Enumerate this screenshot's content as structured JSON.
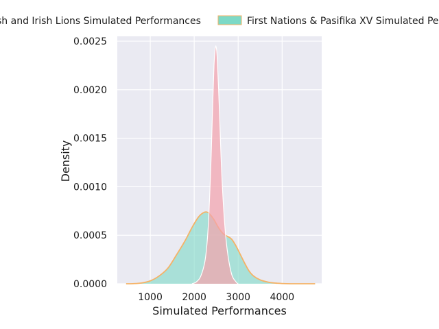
{
  "chart_data": {
    "type": "area",
    "xlabel": "Simulated Performances",
    "ylabel": "Density",
    "xlim": [
      250,
      4900
    ],
    "ylim": [
      0,
      0.00255
    ],
    "xticks": [
      1000,
      2000,
      3000,
      4000
    ],
    "xtick_labels": [
      "1000",
      "2000",
      "3000",
      "4000"
    ],
    "yticks": [
      0,
      0.0005,
      0.001,
      0.0015,
      0.002,
      0.0025
    ],
    "ytick_labels": [
      "0.0000",
      "0.0005",
      "0.0010",
      "0.0015",
      "0.0020",
      "0.0025"
    ],
    "grid": true,
    "legend_position": "top",
    "series": [
      {
        "name": "British and Irish Lions Simulated Performances",
        "legend_label": "sh and Irish Lions Simulated Performances",
        "fill_color": "#f4a3ad",
        "edge_color": "#ffffff",
        "x": [
          1950,
          2050,
          2150,
          2250,
          2320,
          2380,
          2420,
          2450,
          2480,
          2500,
          2520,
          2550,
          2580,
          2620,
          2680,
          2750,
          2850,
          2950,
          3000
        ],
        "y": [
          0,
          2e-05,
          8e-05,
          0.00025,
          0.0006,
          0.00125,
          0.00185,
          0.00225,
          0.00243,
          0.00244,
          0.00235,
          0.00205,
          0.0017,
          0.0012,
          0.0007,
          0.00035,
          0.0001,
          2e-05,
          0
        ]
      },
      {
        "name": "First Nations & Pasifika XV Simulated Performances",
        "legend_label": "First Nations & Pasifika XV Simulated Per",
        "fill_color": "#7dd9c6",
        "edge_color": "#f5b266",
        "x": [
          450,
          600,
          800,
          1000,
          1200,
          1400,
          1600,
          1800,
          1950,
          2100,
          2200,
          2280,
          2350,
          2450,
          2550,
          2650,
          2750,
          2850,
          2950,
          3050,
          3150,
          3250,
          3350,
          3500,
          3700,
          3900,
          4100,
          4400,
          4750
        ],
        "y": [
          0,
          1e-06,
          8e-06,
          3e-05,
          8e-05,
          0.00016,
          0.0003,
          0.00045,
          0.00058,
          0.00069,
          0.00073,
          0.00074,
          0.00072,
          0.00066,
          0.00058,
          0.00052,
          0.00049,
          0.00046,
          0.00039,
          0.0003,
          0.00021,
          0.00013,
          8e-05,
          4e-05,
          1.5e-05,
          5e-06,
          1e-06,
          0,
          0
        ]
      }
    ]
  }
}
